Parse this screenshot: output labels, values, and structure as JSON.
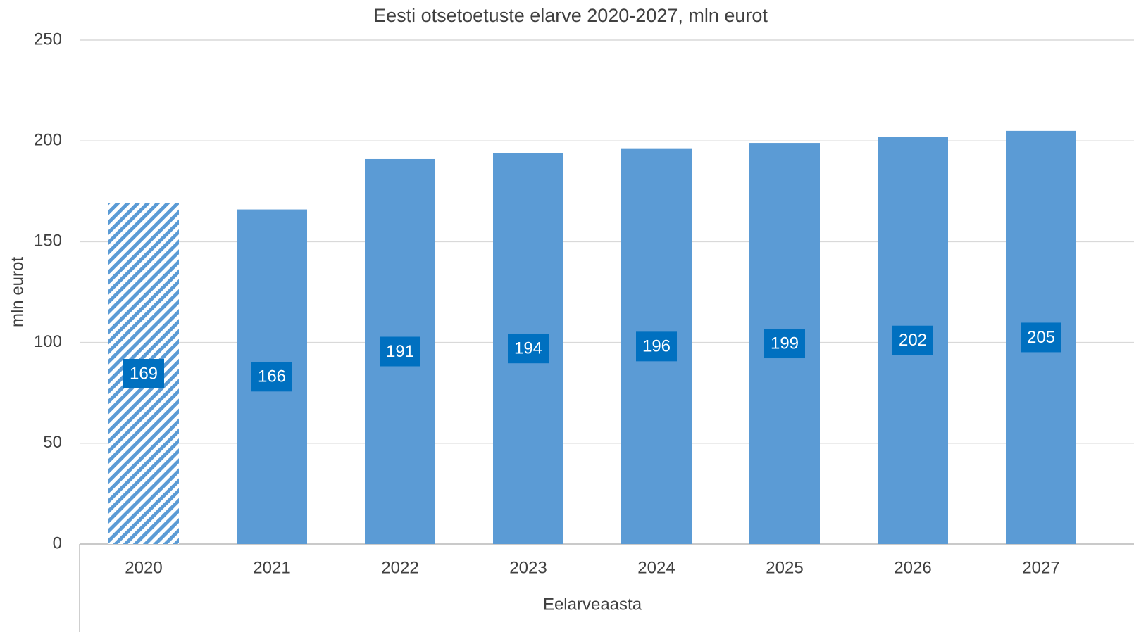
{
  "chart_data": {
    "type": "bar",
    "title": "Eesti otsetoetuste elarve 2020-2027, mln eurot",
    "x_label": "Eelarveaasta",
    "y_label": "mln eurot",
    "categories": [
      "2020",
      "2021",
      "2022",
      "2023",
      "2024",
      "2025",
      "2026",
      "2027"
    ],
    "values": [
      169,
      166,
      191,
      194,
      196,
      199,
      202,
      205
    ],
    "hatched": [
      true,
      false,
      false,
      false,
      false,
      false,
      false,
      false
    ],
    "color": "#5b9bd5",
    "label_box_color": "#0070c0",
    "ylim": [
      0,
      250
    ],
    "yticks": [
      0,
      50,
      100,
      150,
      200,
      250
    ],
    "grid": true
  }
}
